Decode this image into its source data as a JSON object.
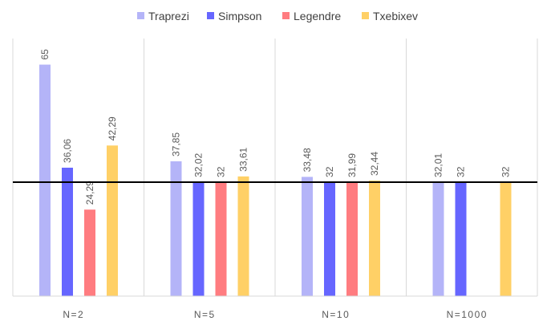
{
  "chart_data": {
    "type": "bar",
    "title": "",
    "xlabel": "",
    "ylabel": "",
    "categories": [
      "N=2",
      "N=5",
      "N=10",
      "N=1000"
    ],
    "ylim": [
      0,
      70
    ],
    "reference_line": 32,
    "legend_position": "top",
    "grid": false,
    "series": [
      {
        "name": "Traprezi",
        "color": "#b4b4f8",
        "values": [
          65,
          37.85,
          33.48,
          32.01
        ],
        "labels": [
          "65",
          "37,85",
          "33,48",
          "32,01"
        ]
      },
      {
        "name": "Simpson",
        "color": "#6666ff",
        "values": [
          36.06,
          32.02,
          32,
          32
        ],
        "labels": [
          "36,06",
          "32,02",
          "32",
          "32"
        ]
      },
      {
        "name": "Legendre",
        "color": "#ff7c80",
        "values": [
          24.29,
          32,
          31.99,
          null
        ],
        "labels": [
          "24,29",
          "32",
          "31,99",
          ""
        ]
      },
      {
        "name": "Txebixev",
        "color": "#ffd066",
        "values": [
          42.29,
          33.61,
          32.44,
          32
        ],
        "labels": [
          "42,29",
          "33,61",
          "32,44",
          "32"
        ]
      }
    ]
  }
}
